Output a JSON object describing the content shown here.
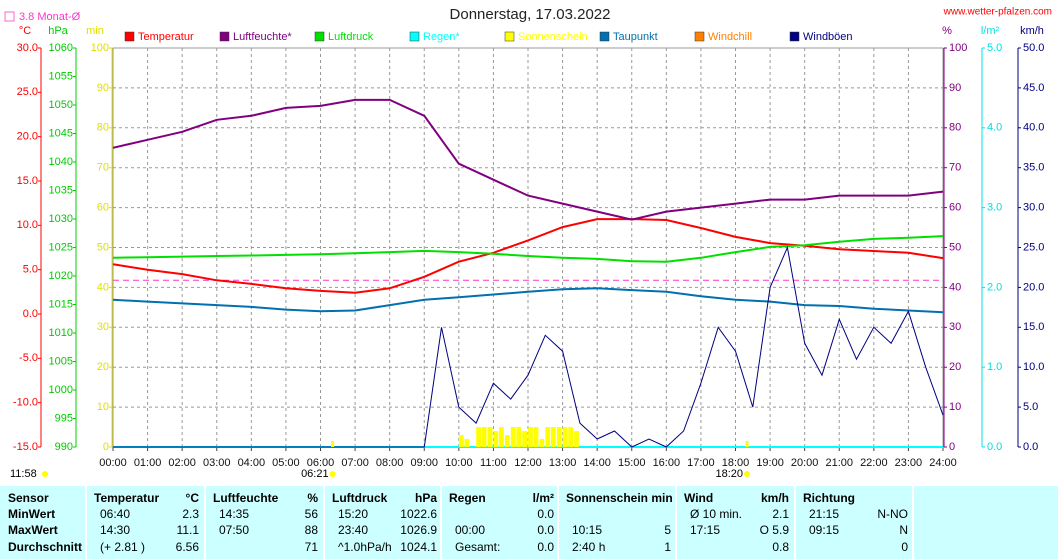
{
  "chart_data": {
    "type": "line",
    "title": "Donnerstag, 17.03.2022",
    "source": "www.wetter-pfalzen.com",
    "monthly_avg": {
      "value": 3.8,
      "label": "3.8 Monat-Ø"
    },
    "sun": {
      "noon": "11:58",
      "sunrise": {
        "value": 6.35,
        "label": "06:21"
      },
      "sunset": {
        "value": 18.333,
        "label": "18:20"
      }
    },
    "xlim": [
      0,
      24
    ],
    "xticks": [
      {
        "value": 0,
        "label": "00:00"
      },
      {
        "value": 1,
        "label": "01:00"
      },
      {
        "value": 2,
        "label": "02:00"
      },
      {
        "value": 3,
        "label": "03:00"
      },
      {
        "value": 4,
        "label": "04:00"
      },
      {
        "value": 5,
        "label": "05:00"
      },
      {
        "value": 6,
        "label": "06:00"
      },
      {
        "value": 7,
        "label": "07:00"
      },
      {
        "value": 8,
        "label": "08:00"
      },
      {
        "value": 9,
        "label": "09:00"
      },
      {
        "value": 10,
        "label": "10:00"
      },
      {
        "value": 11,
        "label": "11:00"
      },
      {
        "value": 12,
        "label": "12:00"
      },
      {
        "value": 13,
        "label": "13:00"
      },
      {
        "value": 14,
        "label": "14:00"
      },
      {
        "value": 15,
        "label": "15:00"
      },
      {
        "value": 16,
        "label": "16:00"
      },
      {
        "value": 17,
        "label": "17:00"
      },
      {
        "value": 18,
        "label": "18:00"
      },
      {
        "value": 19,
        "label": "19:00"
      },
      {
        "value": 20,
        "label": "20:00"
      },
      {
        "value": 21,
        "label": "21:00"
      },
      {
        "value": 22,
        "label": "22:00"
      },
      {
        "value": 23,
        "label": "23:00"
      },
      {
        "value": 24,
        "label": "24:00"
      }
    ],
    "grid": true,
    "axes": [
      {
        "id": "C",
        "unit": "°C",
        "color": "#ff0000",
        "side": "left",
        "lim": [
          -15,
          30
        ],
        "ticks": [
          {
            "value": 30,
            "label": "30.0"
          },
          {
            "value": 25,
            "label": "25.0"
          },
          {
            "value": 20,
            "label": "20.0"
          },
          {
            "value": 15,
            "label": "15.0"
          },
          {
            "value": 10,
            "label": "10.0"
          },
          {
            "value": 5,
            "label": "5.0"
          },
          {
            "value": 0,
            "label": "0.0"
          },
          {
            "value": -5,
            "label": "-5.0"
          },
          {
            "value": -10,
            "label": "-10.0"
          },
          {
            "value": -15,
            "label": "-15.0"
          }
        ]
      },
      {
        "id": "hPa",
        "unit": "hPa",
        "color": "#00cc00",
        "side": "left",
        "lim": [
          990,
          1060
        ],
        "ticks": [
          1060,
          1055,
          1050,
          1045,
          1040,
          1035,
          1030,
          1025,
          1020,
          1015,
          1010,
          1005,
          1000,
          995,
          990
        ]
      },
      {
        "id": "min",
        "unit": "min",
        "color": "#e0e000",
        "side": "left",
        "lim": [
          0,
          100
        ],
        "ticks": [
          100,
          90,
          80,
          70,
          60,
          50,
          40,
          30,
          20,
          10,
          0
        ]
      },
      {
        "id": "pct",
        "unit": "%",
        "color": "#800080",
        "side": "right",
        "lim": [
          0,
          100
        ],
        "ticks": [
          100,
          90,
          80,
          70,
          60,
          50,
          40,
          30,
          20,
          10,
          0
        ]
      },
      {
        "id": "lm2",
        "unit": "l/m²",
        "color": "#00e0e0",
        "side": "right",
        "lim": [
          0,
          5
        ],
        "ticks": [
          {
            "value": 5,
            "label": "5.0"
          },
          {
            "value": 4,
            "label": "4.0"
          },
          {
            "value": 3,
            "label": "3.0"
          },
          {
            "value": 2,
            "label": "2.0"
          },
          {
            "value": 1,
            "label": "1.0"
          },
          {
            "value": 0,
            "label": "0.0"
          }
        ]
      },
      {
        "id": "kmh",
        "unit": "km/h",
        "color": "#000080",
        "side": "right",
        "lim": [
          0,
          50
        ],
        "ticks": [
          {
            "value": 50,
            "label": "50.0"
          },
          {
            "value": 45,
            "label": "45.0"
          },
          {
            "value": 40,
            "label": "40.0"
          },
          {
            "value": 35,
            "label": "35.0"
          },
          {
            "value": 30,
            "label": "30.0"
          },
          {
            "value": 25,
            "label": "25.0"
          },
          {
            "value": 20,
            "label": "20.0"
          },
          {
            "value": 15,
            "label": "15.0"
          },
          {
            "value": 10,
            "label": "10.0"
          },
          {
            "value": 5,
            "label": "5.0"
          },
          {
            "value": 0,
            "label": "0.0"
          }
        ]
      }
    ],
    "x": [
      0,
      1,
      2,
      3,
      4,
      5,
      6,
      7,
      8,
      9,
      10,
      11,
      12,
      13,
      14,
      15,
      16,
      17,
      18,
      19,
      20,
      21,
      22,
      23,
      24
    ],
    "series": [
      {
        "name": "Temperatur",
        "color": "#ff0000",
        "axis": "C",
        "values": [
          5.6,
          5.0,
          4.5,
          3.8,
          3.4,
          2.9,
          2.6,
          2.4,
          2.9,
          4.2,
          5.9,
          6.9,
          8.3,
          9.8,
          10.7,
          10.7,
          10.6,
          9.7,
          8.7,
          8.0,
          7.7,
          7.3,
          7.1,
          6.9,
          6.3
        ]
      },
      {
        "name": "Luftfeuchte*",
        "color": "#800080",
        "axis": "pct",
        "values": [
          75,
          77,
          79,
          82,
          83,
          85,
          85.5,
          87,
          87,
          83,
          71,
          67,
          63,
          61,
          59,
          57,
          59,
          60,
          61,
          62,
          62,
          63,
          63,
          63,
          64
        ]
      },
      {
        "name": "Luftdruck",
        "color": "#00e000",
        "axis": "hPa",
        "values": [
          1023.2,
          1023.3,
          1023.4,
          1023.5,
          1023.6,
          1023.7,
          1023.8,
          1024.0,
          1024.2,
          1024.4,
          1024.2,
          1023.9,
          1023.5,
          1023.2,
          1023.0,
          1022.6,
          1022.5,
          1023.2,
          1024.2,
          1025.1,
          1025.4,
          1026.0,
          1026.5,
          1026.7,
          1027.0
        ]
      },
      {
        "name": "Regen*",
        "color": "#00ffff",
        "axis": "lm2",
        "values": [
          0,
          0,
          0,
          0,
          0,
          0,
          0,
          0,
          0,
          0,
          0,
          0,
          0,
          0,
          0,
          0,
          0,
          0,
          0,
          0,
          0,
          0,
          0,
          0,
          0
        ]
      },
      {
        "name": "Sonnenschein",
        "color": "#ffff00",
        "axis": "min",
        "style": "bar",
        "x": [
          10.17,
          10.33,
          10.5,
          10.67,
          10.83,
          11,
          11.17,
          11.33,
          11.5,
          11.67,
          11.83,
          12,
          12.17,
          12.33,
          12.5,
          12.67,
          12.83,
          13,
          13.17,
          13.33,
          13.5
        ],
        "values": [
          3,
          2,
          0,
          5,
          5,
          5,
          4,
          5,
          3,
          5,
          5,
          4,
          5,
          5,
          2,
          5,
          5,
          5,
          5,
          5,
          4
        ]
      },
      {
        "name": "Taupunkt",
        "color": "#0070b0",
        "axis": "C",
        "values": [
          1.6,
          1.4,
          1.2,
          1.0,
          0.8,
          0.5,
          0.3,
          0.4,
          1.0,
          1.6,
          1.9,
          2.2,
          2.5,
          2.8,
          2.9,
          2.7,
          2.5,
          2.0,
          1.6,
          1.4,
          1.0,
          0.9,
          0.6,
          0.4,
          0.2
        ]
      },
      {
        "name": "Windchill",
        "color": "#ff8000",
        "axis": "C"
      },
      {
        "name": "Windböen",
        "color": "#000080",
        "axis": "kmh",
        "x": [
          0,
          0.5,
          1,
          1.5,
          2,
          2.5,
          3,
          3.5,
          4,
          4.5,
          5,
          5.5,
          6,
          6.5,
          7,
          7.5,
          8,
          8.5,
          9,
          9.5,
          10,
          10.5,
          11,
          11.5,
          12,
          12.5,
          13,
          13.5,
          14,
          14.5,
          15,
          15.5,
          16,
          16.5,
          17,
          17.5,
          18,
          18.5,
          19,
          19.5,
          20,
          20.5,
          21,
          21.5,
          22,
          22.5,
          23,
          23.5,
          24
        ],
        "values": [
          0,
          0,
          0,
          0,
          0,
          0,
          0,
          0,
          0,
          0,
          0,
          0,
          0,
          0,
          0,
          0,
          0,
          0,
          0,
          15,
          5,
          3,
          8,
          6,
          9,
          14,
          12,
          3,
          1,
          2,
          0,
          1,
          0,
          2,
          8,
          15,
          12,
          5,
          20,
          25,
          13,
          9,
          16,
          11,
          15,
          13,
          17,
          10,
          4
        ]
      }
    ]
  },
  "table": {
    "header": "Sensor",
    "row_labels": [
      "MinWert",
      "MaxWert",
      "Durchschnitt"
    ],
    "groups": [
      {
        "label": "Temperatur",
        "unit": "°C",
        "rows": [
          [
            "06:40",
            "2.3"
          ],
          [
            "14:30",
            "11.1"
          ],
          [
            "(+ 2.81 )",
            "6.56"
          ]
        ]
      },
      {
        "label": "Luftfeuchte",
        "unit": "%",
        "rows": [
          [
            "14:35",
            "56"
          ],
          [
            "07:50",
            "88"
          ],
          [
            null,
            "71"
          ]
        ]
      },
      {
        "label": "Luftdruck",
        "unit": "hPa",
        "rows": [
          [
            "15:20",
            "1022.6"
          ],
          [
            "23:40",
            "1026.9"
          ],
          [
            "^1.0hPa/h",
            "1024.1"
          ]
        ]
      },
      {
        "label": "Regen",
        "unit": "l/m²",
        "rows": [
          [
            null,
            "0.0"
          ],
          [
            "00:00",
            "0.0"
          ],
          [
            "Gesamt:",
            "0.0"
          ]
        ]
      },
      {
        "label": "Sonnenschein min",
        "rows": [
          [
            null,
            null
          ],
          [
            "10:15",
            "5"
          ],
          [
            "2:40 h",
            "1"
          ]
        ]
      },
      {
        "label": "Wind",
        "unit": "km/h",
        "rows": [
          [
            "Ø 10 min.",
            "2.1"
          ],
          [
            "17:15",
            "O 5.9"
          ],
          [
            null,
            "0.8"
          ]
        ]
      },
      {
        "label": "Richtung",
        "rows": [
          [
            "21:15",
            "N-NO"
          ],
          [
            "09:15",
            "N"
          ],
          [
            null,
            "0"
          ]
        ]
      }
    ]
  }
}
